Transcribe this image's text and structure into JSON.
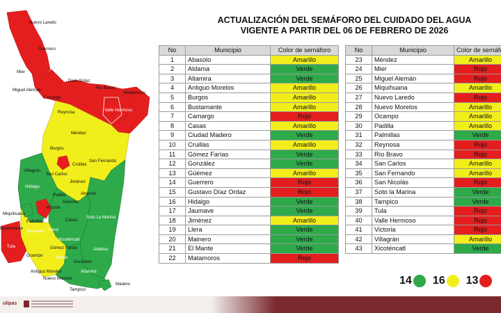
{
  "title": {
    "line1": "ACTUALIZACIÓN DEL SEMÁFORO DEL CUIDADO DEL AGUA",
    "line2": "VIGENTE A PARTIR DEL 06 DE FEBRERO DE 2026"
  },
  "table_headers": {
    "no": "No",
    "municipio": "Municipio",
    "color": "Color de semáforo"
  },
  "colors": {
    "verde": "#2eaa4a",
    "amarillo": "#f2ee1c",
    "rojo": "#e41e1e"
  },
  "municipios": [
    {
      "no": "1",
      "name": "Abasolo",
      "status": "Amarillo"
    },
    {
      "no": "2",
      "name": "Aldama",
      "status": "Verde"
    },
    {
      "no": "3",
      "name": "Altamira",
      "status": "Verde"
    },
    {
      "no": "4",
      "name": "Antiguo Morelos",
      "status": "Amarillo"
    },
    {
      "no": "5",
      "name": "Burgos",
      "status": "Amarillo"
    },
    {
      "no": "6",
      "name": "Bustamante",
      "status": "Amarillo"
    },
    {
      "no": "7",
      "name": "Camargo",
      "status": "Rojo"
    },
    {
      "no": "8",
      "name": "Casas",
      "status": "Amarillo"
    },
    {
      "no": "9",
      "name": "Ciudad Madero",
      "status": "Verde"
    },
    {
      "no": "10",
      "name": "Cruillas",
      "status": "Amarillo"
    },
    {
      "no": "11",
      "name": "Gómez Farías",
      "status": "Verde"
    },
    {
      "no": "12",
      "name": "González",
      "status": "Verde"
    },
    {
      "no": "13",
      "name": "Güémez",
      "status": "Amarillo"
    },
    {
      "no": "14",
      "name": "Guerrero",
      "status": "Rojo"
    },
    {
      "no": "15",
      "name": "Gustavo Díaz Ordaz",
      "status": "Rojo"
    },
    {
      "no": "16",
      "name": "Hidalgo",
      "status": "Verde"
    },
    {
      "no": "17",
      "name": "Jaumave",
      "status": "Verde"
    },
    {
      "no": "18",
      "name": "Jiménez",
      "status": "Amarillo"
    },
    {
      "no": "19",
      "name": "Llera",
      "status": "Verde"
    },
    {
      "no": "20",
      "name": "Mainero",
      "status": "Verde"
    },
    {
      "no": "21",
      "name": "El Mante",
      "status": "Verde"
    },
    {
      "no": "22",
      "name": "Matamoros",
      "status": "Rojo"
    },
    {
      "no": "23",
      "name": "Méndez",
      "status": "Amarillo"
    },
    {
      "no": "24",
      "name": "Mier",
      "status": "Rojo"
    },
    {
      "no": "25",
      "name": "Miguel Alemán",
      "status": "Rojo"
    },
    {
      "no": "26",
      "name": "Miquihuana",
      "status": "Amarillo"
    },
    {
      "no": "27",
      "name": "Nuevo Laredo",
      "status": "Rojo"
    },
    {
      "no": "28",
      "name": "Nuevo Morelos",
      "status": "Amarillo"
    },
    {
      "no": "29",
      "name": "Ocampo",
      "status": "Amarillo"
    },
    {
      "no": "30",
      "name": "Padilla",
      "status": "Amarillo"
    },
    {
      "no": "31",
      "name": "Palmillas",
      "status": "Verde"
    },
    {
      "no": "32",
      "name": "Reynosa",
      "status": "Rojo"
    },
    {
      "no": "33",
      "name": "Río Bravo",
      "status": "Rojo"
    },
    {
      "no": "34",
      "name": "San Carlos",
      "status": "Amarillo"
    },
    {
      "no": "35",
      "name": "San Fernando",
      "status": "Amarillo"
    },
    {
      "no": "36",
      "name": "San Nicolás",
      "status": "Rojo"
    },
    {
      "no": "37",
      "name": "Soto la Marina",
      "status": "Verde"
    },
    {
      "no": "38",
      "name": "Tampico",
      "status": "Verde"
    },
    {
      "no": "39",
      "name": "Tula",
      "status": "Rojo"
    },
    {
      "no": "40",
      "name": "Valle Hermoso",
      "status": "Rojo"
    },
    {
      "no": "41",
      "name": "Victoria",
      "status": "Rojo"
    },
    {
      "no": "42",
      "name": "Villagrán",
      "status": "Amarillo"
    },
    {
      "no": "43",
      "name": "Xicoténcatl",
      "status": "Verde"
    }
  ],
  "summary": [
    {
      "count": "14",
      "color": "#2eaa4a"
    },
    {
      "count": "16",
      "color": "#f2ee1c"
    },
    {
      "count": "13",
      "color": "#e41e1e"
    }
  ],
  "map_labels": [
    {
      "text": "Nuevo Laredo"
    },
    {
      "text": "Guerrero"
    },
    {
      "text": "Mier"
    },
    {
      "text": "Díaz Ordaz"
    },
    {
      "text": "Miguel Alemán"
    },
    {
      "text": "Río Bravo"
    },
    {
      "text": "Matamoros"
    },
    {
      "text": "Camargo"
    },
    {
      "text": "Reynosa"
    },
    {
      "text": "Valle Hermoso"
    },
    {
      "text": "Méndez"
    },
    {
      "text": "Burgos"
    },
    {
      "text": "San Fernando"
    },
    {
      "text": "Villagrán"
    },
    {
      "text": "San Carlos"
    },
    {
      "text": "Cruillas"
    },
    {
      "text": "Hidalgo"
    },
    {
      "text": "Jiménez"
    },
    {
      "text": "Padilla"
    },
    {
      "text": "Abasolo"
    },
    {
      "text": "Soto La Marina"
    },
    {
      "text": "Miquihuana"
    },
    {
      "text": "Victoria"
    },
    {
      "text": "Casas"
    },
    {
      "text": "Bustamante"
    },
    {
      "text": "Jaumave"
    },
    {
      "text": "Llera"
    },
    {
      "text": "Tula"
    },
    {
      "text": "Ocampo"
    },
    {
      "text": "Aldama"
    },
    {
      "text": "Gómez Farías"
    },
    {
      "text": "Mante"
    },
    {
      "text": "González"
    },
    {
      "text": "Antiguo Morelos"
    },
    {
      "text": "Nuevo Morelos"
    },
    {
      "text": "Altamira"
    },
    {
      "text": "Madero"
    },
    {
      "text": "Tampico"
    },
    {
      "text": "Xicoténcatl"
    },
    {
      "text": "Palmillas"
    },
    {
      "text": "Güémez"
    }
  ],
  "footer": {
    "logo_text": "ulipas"
  }
}
